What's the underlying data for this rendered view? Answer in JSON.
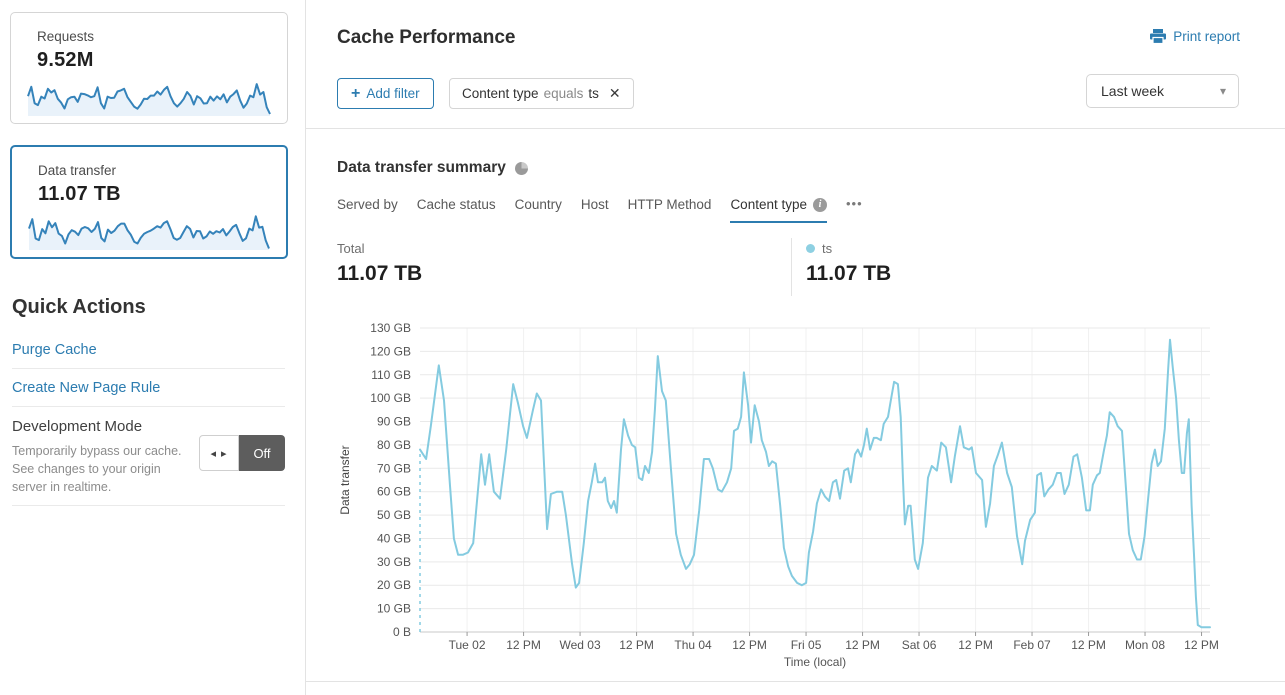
{
  "icons": {
    "plus": "+",
    "close": "✕",
    "caret": "▾",
    "arrows": "◂ ▸",
    "overflow": "•••",
    "info": "i"
  },
  "sidebar": {
    "cards": [
      {
        "label": "Requests",
        "value": "9.52M",
        "sparkline": [
          72,
          108,
          45,
          38,
          70,
          63,
          100,
          86,
          95,
          62,
          47,
          25,
          60,
          68,
          70,
          50,
          82,
          80,
          75,
          68,
          72,
          106,
          45,
          25,
          70,
          65,
          66,
          90,
          94,
          100,
          68,
          50,
          32,
          24,
          40,
          62,
          61,
          74,
          74,
          90,
          78,
          96,
          108,
          72,
          45,
          32,
          45,
          62,
          88,
          73,
          40,
          72,
          64,
          44,
          45,
          70,
          55,
          71,
          60,
          79,
          48,
          70,
          80,
          94,
          55,
          28,
          44,
          74,
          68,
          118,
          78,
          88,
          30,
          4
        ]
      },
      {
        "label": "Data transfer",
        "value": "11.07 TB",
        "sparkline": [
          78,
          114,
          40,
          34,
          76,
          60,
          106,
          83,
          99,
          59,
          50,
          21,
          56,
          72,
          66,
          53,
          78,
          84,
          79,
          65,
          77,
          103,
          42,
          29,
          74,
          61,
          70,
          87,
          97,
          97,
          71,
          54,
          28,
          21,
          43,
          58,
          65,
          70,
          78,
          87,
          82,
          99,
          106,
          76,
          42,
          35,
          42,
          65,
          87,
          77,
          44,
          69,
          68,
          40,
          48,
          67,
          58,
          68,
          63,
          76,
          52,
          67,
          84,
          92,
          60,
          31,
          41,
          78,
          71,
          125,
          82,
          85,
          33,
          2
        ]
      }
    ],
    "quick_actions": {
      "title": "Quick Actions",
      "links": [
        "Purge Cache",
        "Create New Page Rule"
      ],
      "development_mode": {
        "label": "Development Mode",
        "description": "Temporarily bypass our cache. See changes to your origin server in realtime.",
        "toggle_state": "Off"
      }
    }
  },
  "header": {
    "title": "Cache Performance",
    "print_label": "Print report",
    "add_filter_label": "Add filter",
    "filter_chip": {
      "field": "Content type",
      "operator": "equals",
      "value": "ts"
    },
    "time_range": "Last week"
  },
  "summary": {
    "title": "Data transfer summary",
    "tabs": [
      {
        "label": "Served by"
      },
      {
        "label": "Cache status"
      },
      {
        "label": "Country"
      },
      {
        "label": "Host"
      },
      {
        "label": "HTTP Method"
      },
      {
        "label": "Content type",
        "active": true,
        "info": true
      }
    ],
    "total_label": "Total",
    "total_value": "11.07 TB",
    "legend_name": "ts",
    "legend_value": "11.07 TB"
  },
  "chart_data": {
    "type": "line",
    "title": "Data transfer summary",
    "xlabel": "Time (local)",
    "ylabel": "Data transfer",
    "ylim": [
      0,
      130
    ],
    "unit": "GB",
    "grid": true,
    "legend_position": "above-right",
    "y_tick_labels": [
      "0 B",
      "10 GB",
      "20 GB",
      "30 GB",
      "40 GB",
      "50 GB",
      "60 GB",
      "70 GB",
      "80 GB",
      "90 GB",
      "100 GB",
      "110 GB",
      "120 GB",
      "130 GB"
    ],
    "x_unit": "hours since start of range (range: Mon afternoon through Mon 08 afternoon)",
    "x_range_hours": [
      0,
      167.8
    ],
    "x_ticks": [
      {
        "hour": 10,
        "label": "Tue 02"
      },
      {
        "hour": 22,
        "label": "12 PM"
      },
      {
        "hour": 34,
        "label": "Wed 03"
      },
      {
        "hour": 46,
        "label": "12 PM"
      },
      {
        "hour": 58,
        "label": "Thu 04"
      },
      {
        "hour": 70,
        "label": "12 PM"
      },
      {
        "hour": 82,
        "label": "Fri 05"
      },
      {
        "hour": 94,
        "label": "12 PM"
      },
      {
        "hour": 106,
        "label": "Sat 06"
      },
      {
        "hour": 118,
        "label": "12 PM"
      },
      {
        "hour": 130,
        "label": "Feb 07"
      },
      {
        "hour": 142,
        "label": "12 PM"
      },
      {
        "hour": 154,
        "label": "Mon 08"
      },
      {
        "hour": 166,
        "label": "12 PM"
      }
    ],
    "leading_dashed_segment": true,
    "series": [
      {
        "name": "ts",
        "color": "#84cbe0",
        "points": [
          [
            0,
            78
          ],
          [
            1.3,
            74
          ],
          [
            2.3,
            88
          ],
          [
            4,
            114
          ],
          [
            5.1,
            99
          ],
          [
            6.4,
            62
          ],
          [
            7.2,
            40
          ],
          [
            8.1,
            33
          ],
          [
            9.1,
            33
          ],
          [
            10.2,
            34
          ],
          [
            11.3,
            38
          ],
          [
            13,
            76
          ],
          [
            13.8,
            63
          ],
          [
            14.7,
            76
          ],
          [
            15.7,
            60
          ],
          [
            17,
            57
          ],
          [
            18.3,
            78
          ],
          [
            19.8,
            106
          ],
          [
            20.8,
            98
          ],
          [
            21.9,
            88
          ],
          [
            22.7,
            83
          ],
          [
            24,
            95
          ],
          [
            24.8,
            102
          ],
          [
            25.7,
            99
          ],
          [
            27,
            44
          ],
          [
            27.8,
            59
          ],
          [
            29.1,
            60
          ],
          [
            30.2,
            60
          ],
          [
            31,
            50
          ],
          [
            32.3,
            29
          ],
          [
            33.1,
            19
          ],
          [
            33.8,
            21
          ],
          [
            34.8,
            38
          ],
          [
            35.7,
            56
          ],
          [
            36.5,
            64
          ],
          [
            37.2,
            72
          ],
          [
            37.8,
            64
          ],
          [
            38.7,
            64
          ],
          [
            39.3,
            66
          ],
          [
            39.9,
            56
          ],
          [
            40.6,
            53
          ],
          [
            41.2,
            56
          ],
          [
            41.8,
            51
          ],
          [
            42.7,
            78
          ],
          [
            43.3,
            91
          ],
          [
            44.2,
            84
          ],
          [
            45,
            80
          ],
          [
            45.7,
            79
          ],
          [
            46.5,
            66
          ],
          [
            47.2,
            65
          ],
          [
            47.8,
            71
          ],
          [
            48.6,
            68
          ],
          [
            49.3,
            77
          ],
          [
            49.9,
            95
          ],
          [
            50.5,
            118
          ],
          [
            51.4,
            103
          ],
          [
            52.2,
            99
          ],
          [
            53.3,
            70
          ],
          [
            54.4,
            42
          ],
          [
            55.4,
            33
          ],
          [
            56.5,
            27
          ],
          [
            57.3,
            29
          ],
          [
            58.2,
            33
          ],
          [
            59.3,
            52
          ],
          [
            60.3,
            74
          ],
          [
            61.4,
            74
          ],
          [
            62.2,
            70
          ],
          [
            63.3,
            61
          ],
          [
            64.1,
            60
          ],
          [
            65.2,
            64
          ],
          [
            66.1,
            70
          ],
          [
            66.7,
            86
          ],
          [
            67.5,
            87
          ],
          [
            68.2,
            92
          ],
          [
            68.8,
            111
          ],
          [
            69.7,
            97
          ],
          [
            70.3,
            81
          ],
          [
            71.1,
            97
          ],
          [
            72,
            90
          ],
          [
            72.6,
            82
          ],
          [
            73.5,
            77
          ],
          [
            74.1,
            71
          ],
          [
            74.8,
            73
          ],
          [
            75.6,
            72
          ],
          [
            76.5,
            54
          ],
          [
            77.3,
            36
          ],
          [
            78.2,
            28
          ],
          [
            79,
            24
          ],
          [
            80.1,
            21
          ],
          [
            81.1,
            20
          ],
          [
            82,
            21
          ],
          [
            82.6,
            34
          ],
          [
            83.5,
            43
          ],
          [
            84.3,
            55
          ],
          [
            85.2,
            61
          ],
          [
            86,
            58
          ],
          [
            86.9,
            56
          ],
          [
            87.7,
            64
          ],
          [
            88.4,
            65
          ],
          [
            89.2,
            57
          ],
          [
            90.1,
            69
          ],
          [
            90.9,
            70
          ],
          [
            91.5,
            64
          ],
          [
            92.4,
            76
          ],
          [
            93,
            78
          ],
          [
            93.7,
            75
          ],
          [
            94.3,
            80
          ],
          [
            94.9,
            87
          ],
          [
            95.6,
            78
          ],
          [
            96.4,
            83
          ],
          [
            97,
            83
          ],
          [
            97.9,
            82
          ],
          [
            98.5,
            89
          ],
          [
            99.4,
            92
          ],
          [
            100,
            99
          ],
          [
            100.7,
            107
          ],
          [
            101.5,
            106
          ],
          [
            102.1,
            92
          ],
          [
            102.6,
            65
          ],
          [
            103,
            46
          ],
          [
            103.7,
            54
          ],
          [
            104.2,
            54
          ],
          [
            105.1,
            31
          ],
          [
            105.8,
            27
          ],
          [
            106.8,
            38
          ],
          [
            107.9,
            66
          ],
          [
            108.7,
            71
          ],
          [
            109.8,
            69
          ],
          [
            110.7,
            81
          ],
          [
            111.7,
            79
          ],
          [
            112.8,
            64
          ],
          [
            113.6,
            75
          ],
          [
            114.7,
            88
          ],
          [
            115.5,
            79
          ],
          [
            116.6,
            78
          ],
          [
            117.2,
            79
          ],
          [
            118.1,
            68
          ],
          [
            119.4,
            65
          ],
          [
            120.2,
            45
          ],
          [
            121.1,
            55
          ],
          [
            121.9,
            71
          ],
          [
            122.8,
            76
          ],
          [
            123.6,
            81
          ],
          [
            124.7,
            68
          ],
          [
            125.7,
            62
          ],
          [
            126.8,
            41
          ],
          [
            127.9,
            29
          ],
          [
            128.5,
            39
          ],
          [
            129.6,
            48
          ],
          [
            130.6,
            51
          ],
          [
            131.1,
            67
          ],
          [
            131.9,
            68
          ],
          [
            132.6,
            58
          ],
          [
            133.5,
            61
          ],
          [
            134.4,
            63
          ],
          [
            135.3,
            68
          ],
          [
            136.1,
            68
          ],
          [
            136.9,
            59
          ],
          [
            137.8,
            63
          ],
          [
            138.8,
            75
          ],
          [
            139.6,
            76
          ],
          [
            140.6,
            66
          ],
          [
            141.5,
            52
          ],
          [
            142.3,
            52
          ],
          [
            142.9,
            63
          ],
          [
            143.8,
            67
          ],
          [
            144.4,
            68
          ],
          [
            145.3,
            78
          ],
          [
            145.9,
            84
          ],
          [
            146.5,
            94
          ],
          [
            147.4,
            92
          ],
          [
            148.2,
            88
          ],
          [
            149.1,
            86
          ],
          [
            150,
            60
          ],
          [
            150.6,
            42
          ],
          [
            151.4,
            35
          ],
          [
            152.3,
            31
          ],
          [
            153.1,
            31
          ],
          [
            153.9,
            41
          ],
          [
            154.6,
            56
          ],
          [
            155.4,
            72
          ],
          [
            156.1,
            78
          ],
          [
            156.7,
            71
          ],
          [
            157.4,
            73
          ],
          [
            158.2,
            87
          ],
          [
            158.9,
            112
          ],
          [
            159.3,
            125
          ],
          [
            159.9,
            113
          ],
          [
            160.6,
            100
          ],
          [
            161.2,
            82
          ],
          [
            161.8,
            68
          ],
          [
            162.3,
            68
          ],
          [
            162.9,
            85
          ],
          [
            163.3,
            91
          ],
          [
            163.9,
            54
          ],
          [
            164.4,
            33
          ],
          [
            164.8,
            15
          ],
          [
            165.2,
            3
          ],
          [
            166,
            2
          ],
          [
            167.8,
            2
          ]
        ]
      }
    ]
  }
}
